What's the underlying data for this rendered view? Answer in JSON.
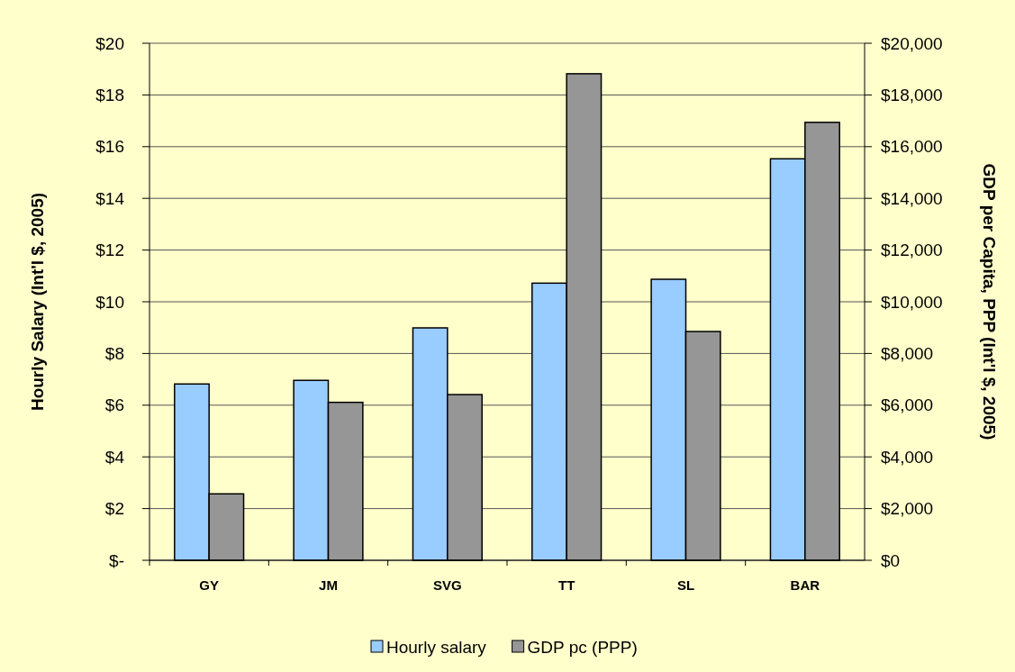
{
  "chart_data": {
    "type": "bar",
    "categories": [
      "GY",
      "JM",
      "SVG",
      "TT",
      "SL",
      "BAR"
    ],
    "ylabel": "Hourly Salary (Int'l $, 2005)",
    "y2label": "GDP per Capita, PPP (Int'l $, 2005)",
    "series": [
      {
        "name": "Hourly salary",
        "color": "#99ccff",
        "values": [
          6.82,
          6.96,
          8.99,
          10.72,
          10.87,
          15.53
        ]
      },
      {
        "name": "GDP pc (PPP)",
        "color": "#969696",
        "axis": "y2",
        "values": [
          2570,
          6110,
          6410,
          18820,
          8850,
          16940
        ]
      }
    ],
    "ylim": [
      0,
      20
    ],
    "yticks": [
      {
        "value": 0,
        "label": "$-"
      },
      {
        "value": 2,
        "label": "$2"
      },
      {
        "value": 4,
        "label": "$4"
      },
      {
        "value": 6,
        "label": "$6"
      },
      {
        "value": 8,
        "label": "$8"
      },
      {
        "value": 10,
        "label": "$10"
      },
      {
        "value": 12,
        "label": "$12"
      },
      {
        "value": 14,
        "label": "$14"
      },
      {
        "value": 16,
        "label": "$16"
      },
      {
        "value": 18,
        "label": "$18"
      },
      {
        "value": 20,
        "label": "$20"
      }
    ],
    "y2lim": [
      0,
      20000
    ],
    "y2ticks": [
      {
        "value": 0,
        "label": "$0"
      },
      {
        "value": 2000,
        "label": "$2,000"
      },
      {
        "value": 4000,
        "label": "$4,000"
      },
      {
        "value": 6000,
        "label": "$6,000"
      },
      {
        "value": 8000,
        "label": "$8,000"
      },
      {
        "value": 10000,
        "label": "$10,000"
      },
      {
        "value": 12000,
        "label": "$12,000"
      },
      {
        "value": 14000,
        "label": "$14,000"
      },
      {
        "value": 16000,
        "label": "$16,000"
      },
      {
        "value": 18000,
        "label": "$18,000"
      },
      {
        "value": 20000,
        "label": "$20,000"
      }
    ],
    "grid": "y",
    "legend": "bottom"
  }
}
